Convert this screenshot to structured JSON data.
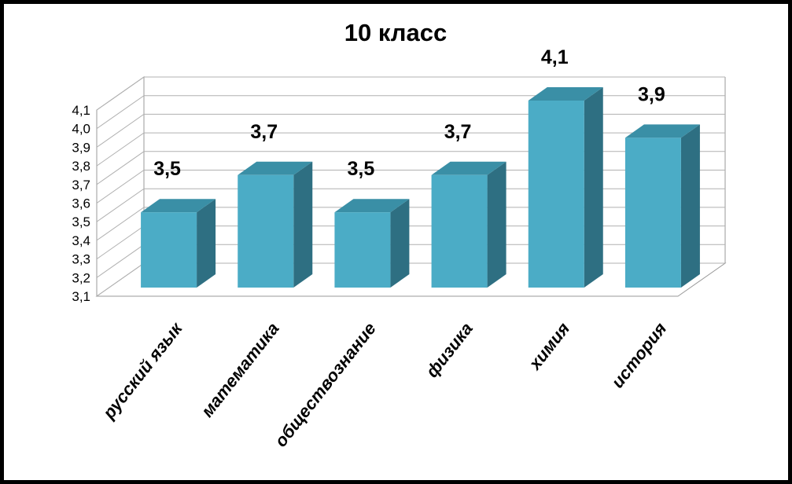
{
  "chart_data": {
    "type": "bar",
    "title": "10 класс",
    "categories": [
      "русский язык",
      "математика",
      "обществознание",
      "физика",
      "химия",
      "история"
    ],
    "values": [
      3.5,
      3.7,
      3.5,
      3.7,
      4.1,
      3.9
    ],
    "data_labels": [
      "3,5",
      "3,7",
      "3,5",
      "3,7",
      "4,1",
      "3,9"
    ],
    "ylim": [
      3.1,
      4.1
    ],
    "yticks": [
      "3,1",
      "3,2",
      "3,3",
      "3,4",
      "3,5",
      "3,6",
      "3,7",
      "3,8",
      "3,9",
      "4,0",
      "4,1"
    ],
    "grid": true,
    "legend": "none",
    "bar_colors": {
      "front": "#4BACC6",
      "top": "#3A8FA6",
      "side": "#2E6F82"
    }
  }
}
